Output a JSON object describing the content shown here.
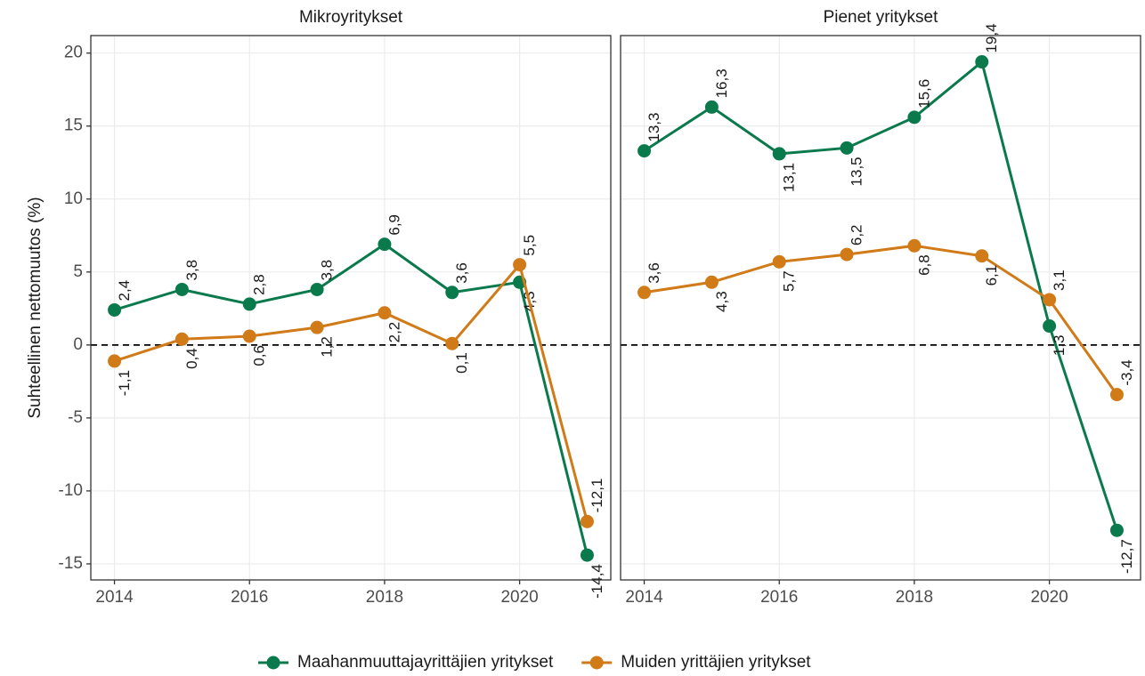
{
  "chart_data": {
    "type": "line",
    "ylabel": "Suhteellinen nettomuutos (%)",
    "panels": [
      "Mikroyritykset",
      "Pienet yritykset"
    ],
    "x": [
      2014,
      2015,
      2016,
      2017,
      2018,
      2019,
      2020,
      2021
    ],
    "xlim": [
      2013.65,
      2021.35
    ],
    "xticks": [
      2014,
      2016,
      2018,
      2020
    ],
    "ylim": [
      -16.1,
      21.2
    ],
    "yticks": [
      -15,
      -10,
      -5,
      0,
      5,
      10,
      15,
      20
    ],
    "grid": true,
    "hline": 0,
    "legend": "bottom",
    "series": [
      {
        "name": "Maahanmuuttajayrittäjien yritykset",
        "color": "#0a7a4d",
        "values": [
          [
            2.4,
            3.8,
            2.8,
            3.8,
            6.9,
            3.6,
            4.3,
            -14.4
          ],
          [
            13.3,
            16.3,
            13.1,
            13.5,
            15.6,
            19.4,
            1.3,
            -12.7
          ]
        ],
        "value_labels": [
          [
            "2,4",
            "3,8",
            "2,8",
            "3,8",
            "6,9",
            "3,6",
            "4,3",
            "-14,4"
          ],
          [
            "13,3",
            "16,3",
            "13,1",
            "13,5",
            "15,6",
            "19,4",
            "1,3",
            "-12,7"
          ]
        ]
      },
      {
        "name": "Muiden yrittäjien yritykset",
        "color": "#d07a18",
        "values": [
          [
            -1.1,
            0.4,
            0.6,
            1.2,
            2.2,
            0.1,
            5.5,
            -12.1
          ],
          [
            3.6,
            4.3,
            5.7,
            6.2,
            6.8,
            6.1,
            3.1,
            -3.4
          ]
        ],
        "value_labels": [
          [
            "-1,1",
            "0,4",
            "0,6",
            "1,2",
            "2,2",
            "0,1",
            "5,5",
            "-12,1"
          ],
          [
            "3,6",
            "4,3",
            "5,7",
            "6,2",
            "6,8",
            "6,1",
            "3,1",
            "-3,4"
          ]
        ]
      }
    ]
  }
}
